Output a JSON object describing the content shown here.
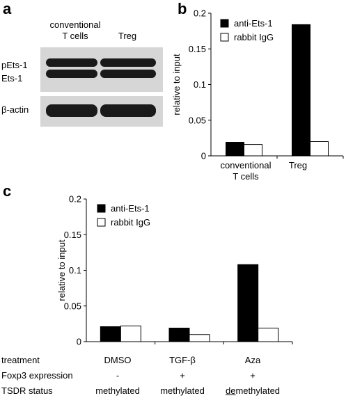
{
  "panels": {
    "a": {
      "letter": "a",
      "lane_labels": [
        "conventional",
        "T cells",
        "Treg"
      ],
      "band_labels": [
        "pEts-1",
        "Ets-1",
        "β-actin"
      ]
    },
    "b": {
      "letter": "b",
      "category_line1": [
        "conventional",
        "Treg"
      ],
      "category_line2": [
        "T cells",
        ""
      ]
    },
    "c": {
      "letter": "c",
      "row_labels": [
        "treatment",
        "Foxp3 expression",
        "TSDR status"
      ],
      "treatments": [
        "DMSO",
        "TGF-β",
        "Aza"
      ],
      "foxp3": [
        "-",
        "+",
        "+"
      ],
      "tsdr": [
        "methylated",
        "methylated",
        "demethylated"
      ],
      "tsdr_underlined_prefix": "de",
      "tsdr_rest": "methylated"
    }
  },
  "colors": {
    "anti_ets1": "#000000",
    "rabbit_igg": "#ffffff",
    "blot_bg": "#d6d6d6",
    "band": "#1a1a1a"
  },
  "chart_data": [
    {
      "panel": "b",
      "type": "bar",
      "categories": [
        "conventional T cells",
        "Treg"
      ],
      "series": [
        {
          "name": "anti-Ets-1",
          "values": [
            0.019,
            0.184
          ]
        },
        {
          "name": "rabbit IgG",
          "values": [
            0.016,
            0.02
          ]
        }
      ],
      "xlabel": "",
      "ylabel": "relative to input",
      "ylim": [
        0,
        0.2
      ],
      "yticks": [
        "0",
        "0.05",
        "0.1",
        "0.15",
        "0.2"
      ],
      "legend": "top-left",
      "grid": false
    },
    {
      "panel": "c",
      "type": "bar",
      "categories": [
        "DMSO",
        "TGF-β",
        "Aza"
      ],
      "series": [
        {
          "name": "anti-Ets-1",
          "values": [
            0.021,
            0.019,
            0.108
          ]
        },
        {
          "name": "rabbit IgG",
          "values": [
            0.022,
            0.01,
            0.019
          ]
        }
      ],
      "xlabel": "",
      "ylabel": "relative to input",
      "ylim": [
        0,
        0.2
      ],
      "yticks": [
        "0",
        "0.05",
        "0.1",
        "0.15",
        "0.2"
      ],
      "legend": "top-left",
      "grid": false
    }
  ]
}
